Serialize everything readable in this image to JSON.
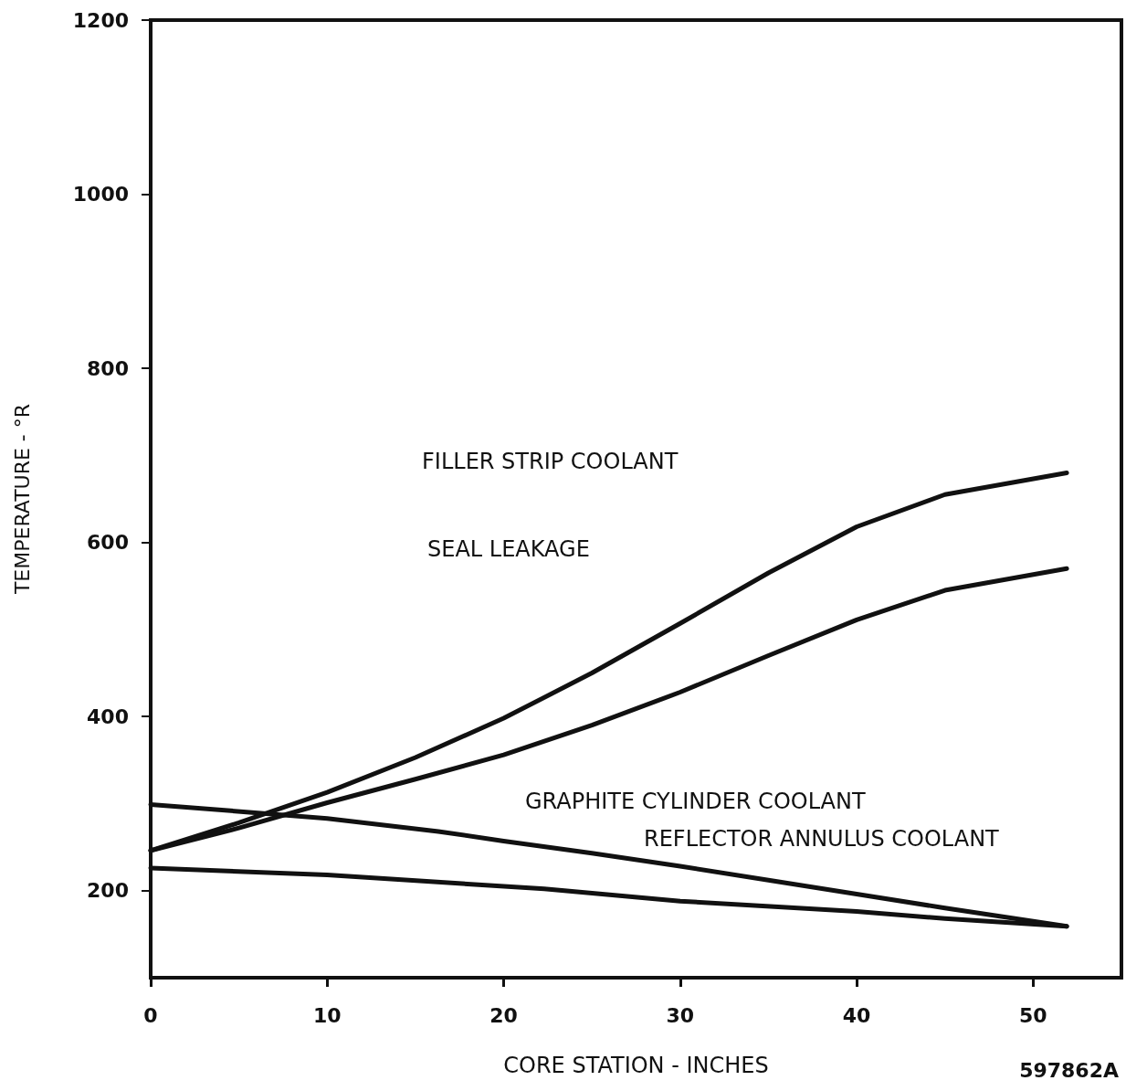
{
  "chart_data": {
    "type": "line",
    "xlabel": "CORE STATION - INCHES",
    "ylabel": "TEMPERATURE - °R",
    "xlim": [
      0,
      55
    ],
    "xticks": [
      0,
      10,
      20,
      30,
      40,
      50
    ],
    "ylim": [
      100,
      1200
    ],
    "yticks": [
      200,
      400,
      600,
      800,
      1000,
      1200
    ],
    "grid": false,
    "marker": "none",
    "line_style": "solid",
    "series": [
      {
        "color": "#111111",
        "x": [
          0,
          5,
          10,
          15,
          20,
          25,
          30,
          35,
          40,
          45,
          51.9
        ],
        "values": [
          246,
          278,
          313,
          353,
          398,
          450,
          507,
          565,
          618,
          655,
          680
        ]
      },
      {
        "color": "#111111",
        "x": [
          0,
          5,
          10,
          15,
          20,
          25,
          30,
          35,
          40,
          45,
          51.9
        ],
        "values": [
          246,
          272,
          301,
          328,
          356,
          390,
          428,
          470,
          511,
          545,
          570
        ]
      },
      {
        "color": "#111111",
        "x": [
          0,
          10,
          16.3,
          20,
          25,
          30,
          35,
          40,
          45,
          51.9
        ],
        "values": [
          299,
          283,
          268,
          257,
          243,
          228,
          212,
          196,
          180,
          159
        ]
      },
      {
        "color": "#111111",
        "x": [
          0,
          10,
          22.3,
          30,
          40,
          45,
          51.9
        ],
        "values": [
          226,
          218,
          202,
          188,
          176,
          168,
          159
        ]
      }
    ],
    "annotations": [
      "FILLER STRIP COOLANT",
      "SEAL LEAKAGE",
      "GRAPHITE CYLINDER COOLANT",
      "REFLECTOR ANNULUS COOLANT",
      "597862A"
    ]
  }
}
